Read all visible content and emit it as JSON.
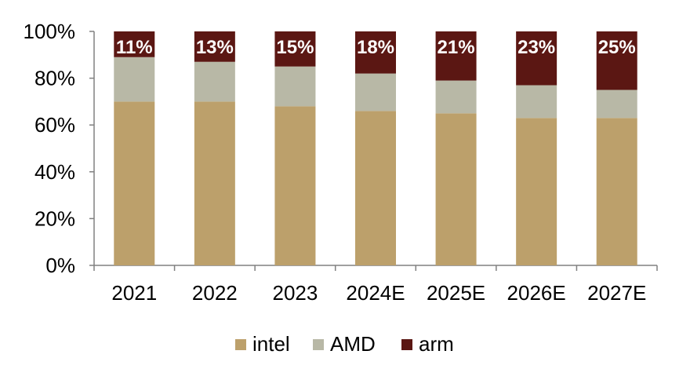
{
  "chart_data": {
    "type": "bar",
    "stacked": true,
    "percent_stacked": true,
    "categories": [
      "2021",
      "2022",
      "2023",
      "2024E",
      "2025E",
      "2026E",
      "2027E"
    ],
    "series": [
      {
        "name": "intel",
        "color": "#bca06b",
        "values": [
          70,
          70,
          68,
          66,
          65,
          63,
          63
        ]
      },
      {
        "name": "AMD",
        "color": "#b8b8a6",
        "values": [
          19,
          17,
          17,
          16,
          14,
          14,
          12
        ]
      },
      {
        "name": "arm",
        "color": "#5b1713",
        "values": [
          11,
          13,
          15,
          18,
          21,
          23,
          25
        ]
      }
    ],
    "data_labels": {
      "series": "arm",
      "texts": [
        "11%",
        "13%",
        "15%",
        "18%",
        "21%",
        "23%",
        "25%"
      ]
    },
    "y_ticks": [
      "0%",
      "20%",
      "40%",
      "60%",
      "80%",
      "100%"
    ],
    "ylim": [
      0,
      100
    ],
    "grid": false,
    "legend_position": "bottom"
  }
}
